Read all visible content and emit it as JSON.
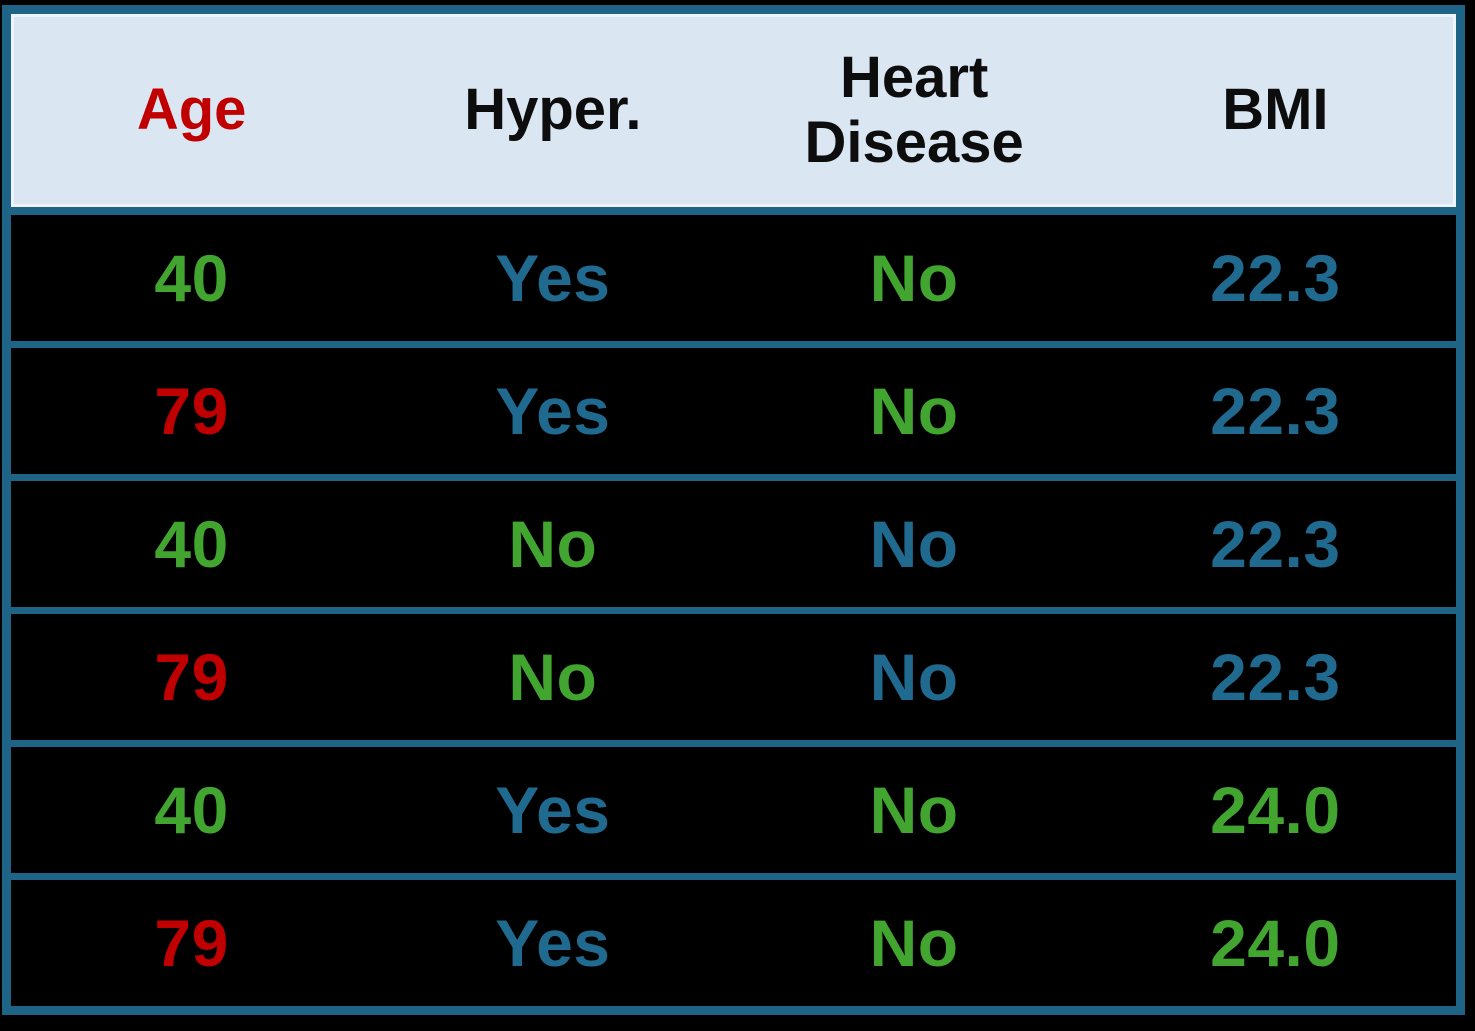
{
  "colors": {
    "page_bg": "#000000",
    "table_border": "#1e6487",
    "header_bg": "#dbe6f3",
    "row_bg": "#000000",
    "red": "#c00000",
    "green": "#41a530",
    "blue": "#20698f",
    "black": "#0d0d0d"
  },
  "table": {
    "columns": [
      {
        "label": "Age",
        "color": "red"
      },
      {
        "label": "Hyper.",
        "color": "black"
      },
      {
        "label": "Heart Disease",
        "color": "black"
      },
      {
        "label": "BMI",
        "color": "black"
      }
    ],
    "rows": [
      {
        "cells": [
          {
            "text": "40",
            "color": "green"
          },
          {
            "text": "Yes",
            "color": "blue"
          },
          {
            "text": "No",
            "color": "green"
          },
          {
            "text": "22.3",
            "color": "blue"
          }
        ]
      },
      {
        "cells": [
          {
            "text": "79",
            "color": "red"
          },
          {
            "text": "Yes",
            "color": "blue"
          },
          {
            "text": "No",
            "color": "green"
          },
          {
            "text": "22.3",
            "color": "blue"
          }
        ]
      },
      {
        "cells": [
          {
            "text": "40",
            "color": "green"
          },
          {
            "text": "No",
            "color": "green"
          },
          {
            "text": "No",
            "color": "blue"
          },
          {
            "text": "22.3",
            "color": "blue"
          }
        ]
      },
      {
        "cells": [
          {
            "text": "79",
            "color": "red"
          },
          {
            "text": "No",
            "color": "green"
          },
          {
            "text": "No",
            "color": "blue"
          },
          {
            "text": "22.3",
            "color": "blue"
          }
        ]
      },
      {
        "cells": [
          {
            "text": "40",
            "color": "green"
          },
          {
            "text": "Yes",
            "color": "blue"
          },
          {
            "text": "No",
            "color": "green"
          },
          {
            "text": "24.0",
            "color": "green"
          }
        ]
      },
      {
        "cells": [
          {
            "text": "79",
            "color": "red"
          },
          {
            "text": "Yes",
            "color": "blue"
          },
          {
            "text": "No",
            "color": "green"
          },
          {
            "text": "24.0",
            "color": "green"
          }
        ]
      }
    ]
  },
  "chart_data": {
    "type": "table",
    "title": "",
    "columns": [
      "Age",
      "Hyper.",
      "Heart Disease",
      "BMI"
    ],
    "rows": [
      [
        "40",
        "Yes",
        "No",
        "22.3"
      ],
      [
        "79",
        "Yes",
        "No",
        "22.3"
      ],
      [
        "40",
        "No",
        "No",
        "22.3"
      ],
      [
        "79",
        "No",
        "No",
        "22.3"
      ],
      [
        "40",
        "Yes",
        "No",
        "24.0"
      ],
      [
        "79",
        "Yes",
        "No",
        "24.0"
      ]
    ]
  }
}
